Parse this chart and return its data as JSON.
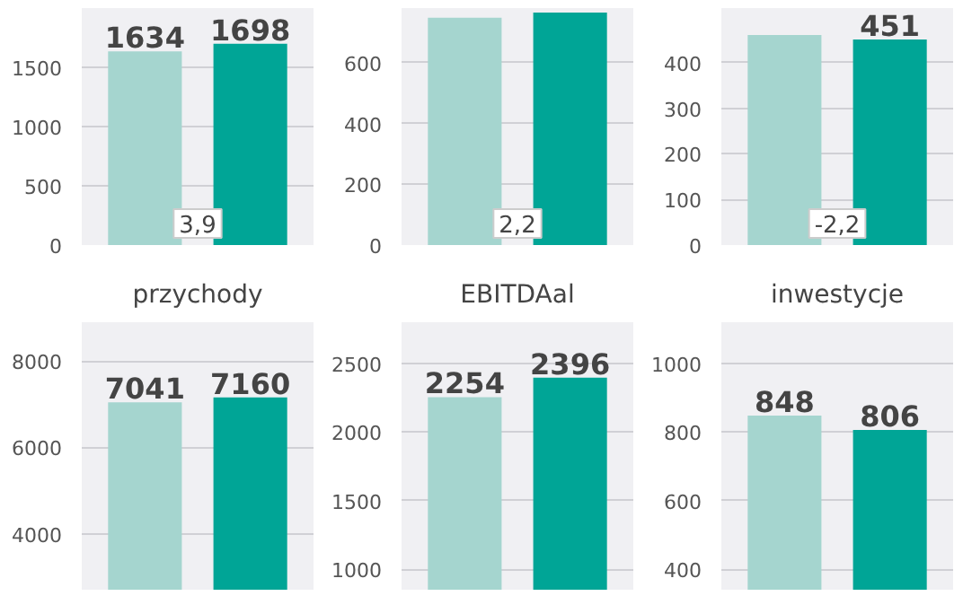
{
  "chart_data": [
    {
      "type": "bar",
      "categories": [
        null,
        null
      ],
      "values": [
        1634,
        1698
      ],
      "colors": [
        "#a5d5cf",
        "#00a596"
      ],
      "ylim": [
        0,
        2000
      ],
      "yticks": [
        0,
        500,
        1000,
        1500
      ],
      "grid": "y",
      "data_labels": true,
      "xlabel": "przychody",
      "annotations": [
        "3,9"
      ],
      "tick_labels": "y"
    },
    {
      "type": "bar",
      "categories": [
        null,
        null
      ],
      "values": [
        748,
        765
      ],
      "colors": [
        "#a5d5cf",
        "#00a596"
      ],
      "ylim": [
        0,
        780
      ],
      "yticks": [
        0,
        200,
        400,
        600
      ],
      "grid": "y",
      "xlabel": "EBITDAal",
      "annotations": [
        "2,2"
      ],
      "tick_labels": "y"
    },
    {
      "type": "bar",
      "categories": [
        null,
        null
      ],
      "values": [
        461,
        451
      ],
      "colors": [
        "#a5d5cf",
        "#00a596"
      ],
      "ylim": [
        0,
        520
      ],
      "yticks": [
        0,
        100,
        200,
        300,
        400
      ],
      "grid": "y",
      "value_labels": [
        null,
        "451"
      ],
      "xlabel": "inwestycje",
      "annotations": [
        "-2,2"
      ],
      "tick_labels": "y"
    },
    {
      "type": "bar",
      "categories": [
        null,
        null
      ],
      "values": [
        7041,
        7160
      ],
      "colors": [
        "#a5d5cf",
        "#00a596"
      ],
      "ylim": [
        2700,
        8900
      ],
      "yticks": [
        4000,
        6000,
        8000
      ],
      "grid": "y",
      "data_labels": true,
      "tick_labels": "y"
    },
    {
      "type": "bar",
      "categories": [
        null,
        null
      ],
      "values": [
        2254,
        2396
      ],
      "colors": [
        "#a5d5cf",
        "#00a596"
      ],
      "ylim": [
        850,
        2800
      ],
      "yticks": [
        1000,
        1500,
        2000,
        2500
      ],
      "grid": "y",
      "data_labels": true,
      "tick_labels": "y"
    },
    {
      "type": "bar",
      "categories": [
        null,
        null
      ],
      "values": [
        848,
        806
      ],
      "colors": [
        "#a5d5cf",
        "#00a596"
      ],
      "ylim": [
        340,
        1120
      ],
      "yticks": [
        400,
        600,
        800,
        1000
      ],
      "grid": "y",
      "data_labels": true,
      "tick_labels": "y"
    }
  ]
}
